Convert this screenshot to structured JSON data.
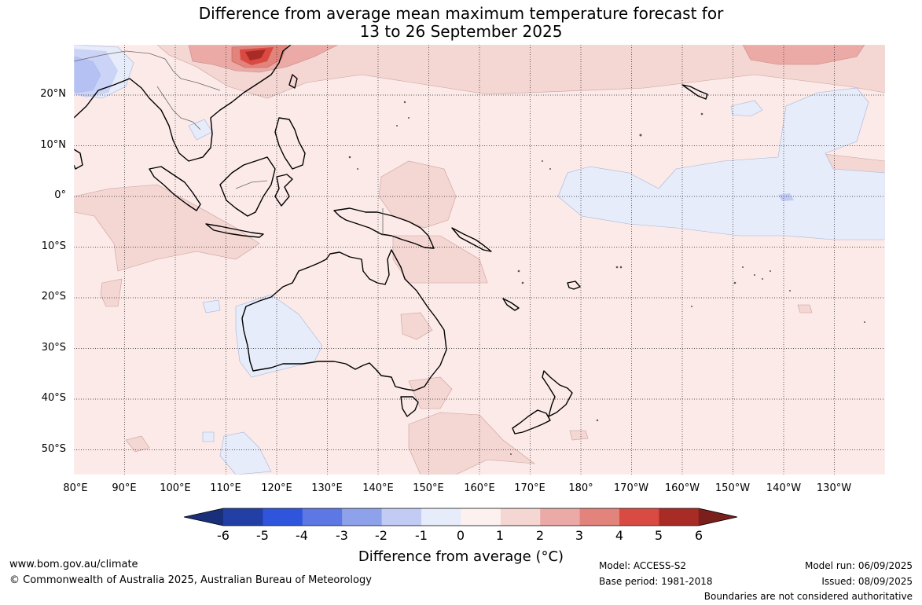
{
  "title": {
    "line1": "Difference from average mean maximum temperature forecast for",
    "line2": "13 to 26 September 2025"
  },
  "map": {
    "lon_labels": [
      "80°E",
      "90°E",
      "100°E",
      "110°E",
      "120°E",
      "130°E",
      "140°E",
      "150°E",
      "160°E",
      "170°E",
      "180°",
      "170°W",
      "160°W",
      "150°W",
      "140°W",
      "130°W"
    ],
    "lat_labels": [
      "20°N",
      "10°N",
      "0°",
      "10°S",
      "20°S",
      "30°S",
      "40°S",
      "50°S"
    ],
    "lon_range": [
      80,
      240
    ],
    "lat_range": [
      -55,
      30
    ],
    "grid": true,
    "colors": {
      "below_0_to_1": "#e7ecfa",
      "zero_to_1": "#fbeae8",
      "one_to_2": "#f4d6d3",
      "two_to_3": "#ebaaa6",
      "three_to_4": "#e2837c",
      "four_to_5": "#d84a42",
      "five_to_6": "#a82b26",
      "minus_2_to_minus_3": "#8ea3ea",
      "coast": "#000000"
    }
  },
  "colorbar": {
    "ticks": [
      "-6",
      "-5",
      "-4",
      "-3",
      "-2",
      "-1",
      "0",
      "1",
      "2",
      "3",
      "4",
      "5",
      "6"
    ],
    "colors": [
      "#223fa6",
      "#2f55dc",
      "#5d78e4",
      "#8ea2ec",
      "#c2cbf4",
      "#e7ecfa",
      "#fdf1ef",
      "#f4d6d3",
      "#ebaaa6",
      "#e2837c",
      "#d84a42",
      "#a82b26"
    ],
    "low_extend_color": "#1a2f7a",
    "high_extend_color": "#7a1f1c",
    "label": "Difference from average (",
    "unit": "°C",
    "label_close": ")"
  },
  "footer": {
    "website": "www.bom.gov.au/climate",
    "copyright": "© Commonwealth of Australia 2025, Australian Bureau of Meteorology",
    "model": "Model: ACCESS-S2",
    "base_period": "Base period: 1981-2018",
    "model_run": "Model run: 06/09/2025",
    "issued": "Issued: 08/09/2025",
    "disclaimer": "Boundaries are not considered authoritative"
  }
}
